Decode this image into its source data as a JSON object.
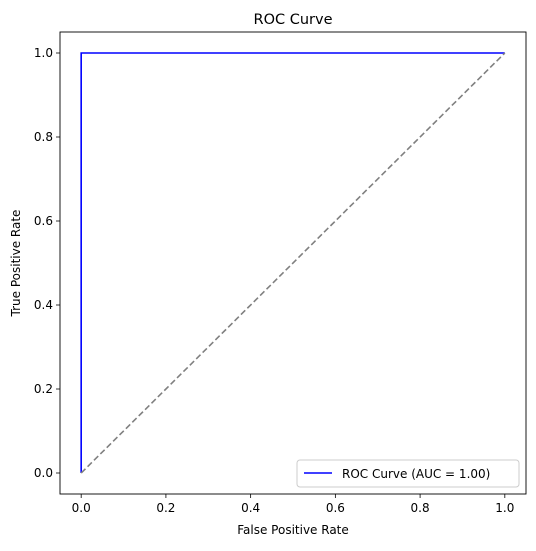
{
  "chart_data": {
    "type": "line",
    "title": "ROC Curve",
    "xlabel": "False Positive Rate",
    "ylabel": "True Positive Rate",
    "xlim": [
      -0.05,
      1.05
    ],
    "ylim": [
      -0.05,
      1.05
    ],
    "xticks": [
      "0.0",
      "0.2",
      "0.4",
      "0.6",
      "0.8",
      "1.0"
    ],
    "yticks": [
      "0.0",
      "0.2",
      "0.4",
      "0.6",
      "0.8",
      "1.0"
    ],
    "grid": false,
    "legend_position": "lower-right",
    "series": [
      {
        "name": "ROC Curve (AUC = 1.00)",
        "x": [
          0.0,
          0.0,
          1.0
        ],
        "y": [
          0.0,
          1.0,
          1.0
        ],
        "color": "#0000ff",
        "style": "solid"
      },
      {
        "x": [
          0.0,
          1.0
        ],
        "y": [
          0.0,
          1.0
        ],
        "color": "#808080",
        "style": "dashed"
      }
    ]
  }
}
